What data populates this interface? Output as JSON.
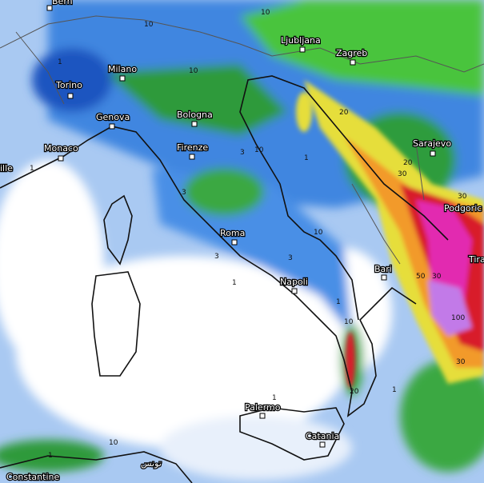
{
  "cities": [
    "Bern",
    "Milano",
    "Torino",
    "Genova",
    "Monaco",
    "ille",
    "Bologna",
    "Firenze",
    "Roma",
    "Napoli",
    "Bari",
    "Palermo",
    "Catania",
    "Ljubljana",
    "Zagreb",
    "Sarajevo",
    "Podgoric",
    "Tira",
    "Constantine",
    "تونس"
  ],
  "contour_labels": [
    10,
    10,
    10,
    1,
    1,
    3,
    3,
    3,
    10,
    10,
    20,
    20,
    30,
    30,
    50,
    30,
    100,
    30,
    10,
    20,
    1,
    1,
    1,
    10,
    1,
    1,
    3,
    1
  ]
}
